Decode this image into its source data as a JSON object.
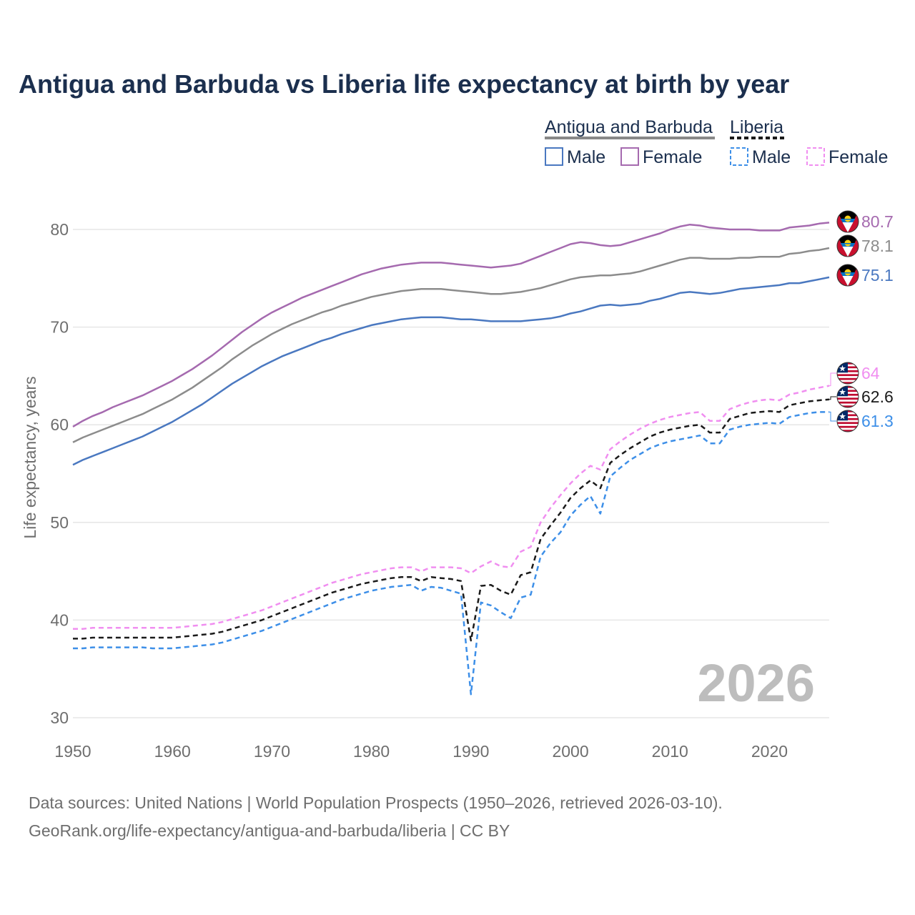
{
  "chart_data": {
    "type": "line",
    "title": "Antigua and Barbuda vs Liberia life expectancy at birth by year",
    "ylabel": "Life expectancy, years",
    "xlabel": "",
    "xlim": [
      1950,
      2026
    ],
    "ylim": [
      30,
      83
    ],
    "x_ticks": [
      "1950",
      "1960",
      "1970",
      "1980",
      "1990",
      "2000",
      "2010",
      "2020"
    ],
    "y_ticks": [
      "30",
      "40",
      "50",
      "60",
      "70",
      "80"
    ],
    "watermark_year": "2026",
    "legend": {
      "groups": [
        {
          "name": "Antigua and Barbuda",
          "line_color": "#888888",
          "dashed": false,
          "items": [
            {
              "label": "Male",
              "color": "#4a78c0"
            },
            {
              "label": "Female",
              "color": "#a56aaf"
            }
          ]
        },
        {
          "name": "Liberia",
          "line_color": "#1a1a1a",
          "dashed": true,
          "items": [
            {
              "label": "Male",
              "color": "#3d8fe8"
            },
            {
              "label": "Female",
              "color": "#f08ef0"
            }
          ]
        }
      ]
    },
    "x": [
      1950,
      1951,
      1952,
      1953,
      1954,
      1955,
      1956,
      1957,
      1958,
      1959,
      1960,
      1961,
      1962,
      1963,
      1964,
      1965,
      1966,
      1967,
      1968,
      1969,
      1970,
      1971,
      1972,
      1973,
      1974,
      1975,
      1976,
      1977,
      1978,
      1979,
      1980,
      1981,
      1982,
      1983,
      1984,
      1985,
      1986,
      1987,
      1988,
      1989,
      1990,
      1991,
      1992,
      1993,
      1994,
      1995,
      1996,
      1997,
      1998,
      1999,
      2000,
      2001,
      2002,
      2003,
      2004,
      2005,
      2006,
      2007,
      2008,
      2009,
      2010,
      2011,
      2012,
      2013,
      2014,
      2015,
      2016,
      2017,
      2018,
      2019,
      2020,
      2021,
      2022,
      2023,
      2024,
      2025,
      2026
    ],
    "series": [
      {
        "name": "Antigua and Barbuda Female",
        "country": "Antigua and Barbuda",
        "color": "#a56aaf",
        "dashed": false,
        "end_label": "80.7",
        "flag": "antigua",
        "values": [
          59.8,
          60.4,
          60.9,
          61.3,
          61.8,
          62.2,
          62.6,
          63.0,
          63.5,
          64.0,
          64.5,
          65.1,
          65.7,
          66.4,
          67.1,
          67.9,
          68.7,
          69.5,
          70.2,
          70.9,
          71.5,
          72.0,
          72.5,
          73.0,
          73.4,
          73.8,
          74.2,
          74.6,
          75.0,
          75.4,
          75.7,
          76.0,
          76.2,
          76.4,
          76.5,
          76.6,
          76.6,
          76.6,
          76.5,
          76.4,
          76.3,
          76.2,
          76.1,
          76.2,
          76.3,
          76.5,
          76.9,
          77.3,
          77.7,
          78.1,
          78.5,
          78.7,
          78.6,
          78.4,
          78.3,
          78.4,
          78.7,
          79.0,
          79.3,
          79.6,
          80.0,
          80.3,
          80.5,
          80.4,
          80.2,
          80.1,
          80.0,
          80.0,
          80.0,
          79.9,
          79.9,
          79.9,
          80.2,
          80.3,
          80.4,
          80.6,
          80.7
        ]
      },
      {
        "name": "Antigua and Barbuda Total",
        "country": "Antigua and Barbuda",
        "color": "#8c8c8c",
        "dashed": false,
        "end_label": "78.1",
        "flag": "antigua",
        "values": [
          58.2,
          58.7,
          59.1,
          59.5,
          59.9,
          60.3,
          60.7,
          61.1,
          61.6,
          62.1,
          62.6,
          63.2,
          63.8,
          64.5,
          65.2,
          65.9,
          66.7,
          67.4,
          68.1,
          68.7,
          69.3,
          69.8,
          70.3,
          70.7,
          71.1,
          71.5,
          71.8,
          72.2,
          72.5,
          72.8,
          73.1,
          73.3,
          73.5,
          73.7,
          73.8,
          73.9,
          73.9,
          73.9,
          73.8,
          73.7,
          73.6,
          73.5,
          73.4,
          73.4,
          73.5,
          73.6,
          73.8,
          74.0,
          74.3,
          74.6,
          74.9,
          75.1,
          75.2,
          75.3,
          75.3,
          75.4,
          75.5,
          75.7,
          76.0,
          76.3,
          76.6,
          76.9,
          77.1,
          77.1,
          77.0,
          77.0,
          77.0,
          77.1,
          77.1,
          77.2,
          77.2,
          77.2,
          77.5,
          77.6,
          77.8,
          77.9,
          78.1
        ]
      },
      {
        "name": "Antigua and Barbuda Male",
        "country": "Antigua and Barbuda",
        "color": "#4a78c0",
        "dashed": false,
        "end_label": "75.1",
        "flag": "antigua",
        "values": [
          55.9,
          56.4,
          56.8,
          57.2,
          57.6,
          58.0,
          58.4,
          58.8,
          59.3,
          59.8,
          60.3,
          60.9,
          61.5,
          62.1,
          62.8,
          63.5,
          64.2,
          64.8,
          65.4,
          66.0,
          66.5,
          67.0,
          67.4,
          67.8,
          68.2,
          68.6,
          68.9,
          69.3,
          69.6,
          69.9,
          70.2,
          70.4,
          70.6,
          70.8,
          70.9,
          71.0,
          71.0,
          71.0,
          70.9,
          70.8,
          70.8,
          70.7,
          70.6,
          70.6,
          70.6,
          70.6,
          70.7,
          70.8,
          70.9,
          71.1,
          71.4,
          71.6,
          71.9,
          72.2,
          72.3,
          72.2,
          72.3,
          72.4,
          72.7,
          72.9,
          73.2,
          73.5,
          73.6,
          73.5,
          73.4,
          73.5,
          73.7,
          73.9,
          74.0,
          74.1,
          74.2,
          74.3,
          74.5,
          74.5,
          74.7,
          74.9,
          75.1
        ]
      },
      {
        "name": "Liberia Female",
        "country": "Liberia",
        "color": "#f08ef0",
        "dashed": true,
        "end_label": "64",
        "flag": "liberia",
        "values": [
          39.1,
          39.1,
          39.2,
          39.2,
          39.2,
          39.2,
          39.2,
          39.2,
          39.2,
          39.2,
          39.2,
          39.3,
          39.4,
          39.5,
          39.6,
          39.8,
          40.1,
          40.4,
          40.7,
          41.0,
          41.4,
          41.8,
          42.2,
          42.6,
          43.0,
          43.4,
          43.8,
          44.1,
          44.4,
          44.7,
          44.9,
          45.1,
          45.3,
          45.4,
          45.4,
          45.0,
          45.4,
          45.4,
          45.4,
          45.3,
          44.8,
          45.5,
          46.0,
          45.5,
          45.4,
          47.0,
          47.5,
          50.0,
          51.5,
          52.8,
          54.0,
          55.0,
          55.8,
          55.4,
          57.5,
          58.3,
          59.0,
          59.6,
          60.1,
          60.5,
          60.8,
          61.0,
          61.2,
          61.3,
          60.4,
          60.4,
          61.6,
          62.0,
          62.3,
          62.5,
          62.6,
          62.5,
          63.1,
          63.3,
          63.6,
          63.8,
          64.0
        ]
      },
      {
        "name": "Liberia Total",
        "country": "Liberia",
        "color": "#1a1a1a",
        "dashed": true,
        "end_label": "62.6",
        "flag": "liberia",
        "values": [
          38.1,
          38.1,
          38.2,
          38.2,
          38.2,
          38.2,
          38.2,
          38.2,
          38.2,
          38.2,
          38.2,
          38.3,
          38.4,
          38.5,
          38.6,
          38.8,
          39.1,
          39.4,
          39.7,
          40.0,
          40.4,
          40.8,
          41.2,
          41.6,
          42.0,
          42.4,
          42.8,
          43.1,
          43.4,
          43.7,
          43.9,
          44.1,
          44.3,
          44.4,
          44.4,
          44.0,
          44.4,
          44.3,
          44.2,
          44.0,
          37.9,
          43.5,
          43.6,
          43.0,
          42.6,
          44.6,
          44.9,
          48.3,
          49.7,
          51.0,
          52.5,
          53.5,
          54.3,
          53.5,
          56.1,
          56.9,
          57.6,
          58.2,
          58.8,
          59.2,
          59.5,
          59.7,
          59.9,
          60.0,
          59.2,
          59.2,
          60.6,
          60.9,
          61.2,
          61.3,
          61.4,
          61.3,
          62.0,
          62.2,
          62.4,
          62.5,
          62.6
        ]
      },
      {
        "name": "Liberia Male",
        "country": "Liberia",
        "color": "#3d8fe8",
        "dashed": true,
        "end_label": "61.3",
        "flag": "liberia",
        "values": [
          37.1,
          37.1,
          37.2,
          37.2,
          37.2,
          37.2,
          37.2,
          37.2,
          37.1,
          37.1,
          37.1,
          37.2,
          37.3,
          37.4,
          37.5,
          37.7,
          38.0,
          38.3,
          38.6,
          38.9,
          39.3,
          39.7,
          40.1,
          40.5,
          40.9,
          41.3,
          41.7,
          42.1,
          42.4,
          42.7,
          43.0,
          43.2,
          43.4,
          43.5,
          43.6,
          43.0,
          43.4,
          43.3,
          43.0,
          42.7,
          32.4,
          41.8,
          41.5,
          40.8,
          40.2,
          42.3,
          42.6,
          46.5,
          47.9,
          49.0,
          50.7,
          51.8,
          52.7,
          50.9,
          54.7,
          55.6,
          56.4,
          57.0,
          57.6,
          58.0,
          58.3,
          58.5,
          58.7,
          58.9,
          58.1,
          58.1,
          59.5,
          59.8,
          60.0,
          60.1,
          60.2,
          60.1,
          60.8,
          61.0,
          61.2,
          61.3,
          61.3
        ]
      }
    ]
  },
  "source": {
    "line1": "Data sources: United Nations | World Population Prospects (1950–2026, retrieved 2026-03-10).",
    "line2": "GeoRank.org/life-expectancy/antigua-and-barbuda/liberia | CC BY"
  }
}
